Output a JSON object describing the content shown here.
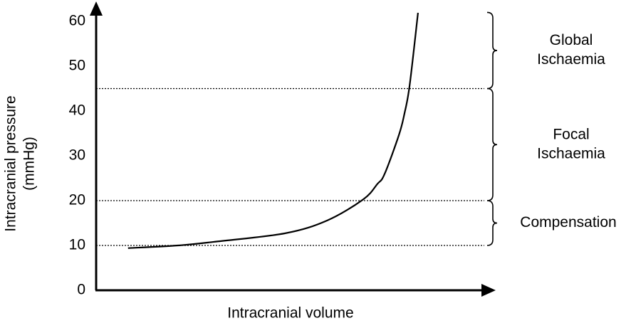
{
  "chart_data": {
    "type": "line",
    "y_label_lines": [
      "Intracranial pressure",
      "(mmHg)"
    ],
    "x_label": "Intracranial volume",
    "ylim": [
      0,
      60
    ],
    "yticks": [
      0,
      10,
      20,
      30,
      40,
      50,
      60
    ],
    "xlim": [
      0,
      100
    ],
    "series": [
      {
        "color": "#000000",
        "x": [
          8,
          20.5,
          29.5,
          47.3,
          58,
          67,
          70.5,
          72.3,
          75.9,
          77.3,
          78.6,
          80.7
        ],
        "values": [
          9.4,
          10.0,
          10.8,
          12.7,
          15.6,
          20.3,
          23.7,
          25.9,
          34.6,
          39.4,
          45.7,
          61.9
        ]
      }
    ],
    "thresholds": [
      10,
      20,
      45
    ],
    "zones": [
      {
        "label_lines": [
          "Compensation"
        ],
        "range": [
          10,
          20
        ]
      },
      {
        "label_lines": [
          "Focal",
          "Ischaemia"
        ],
        "range": [
          20,
          45
        ]
      },
      {
        "label_lines": [
          "Global",
          "Ischaemia"
        ],
        "range": [
          45,
          62
        ]
      }
    ]
  }
}
